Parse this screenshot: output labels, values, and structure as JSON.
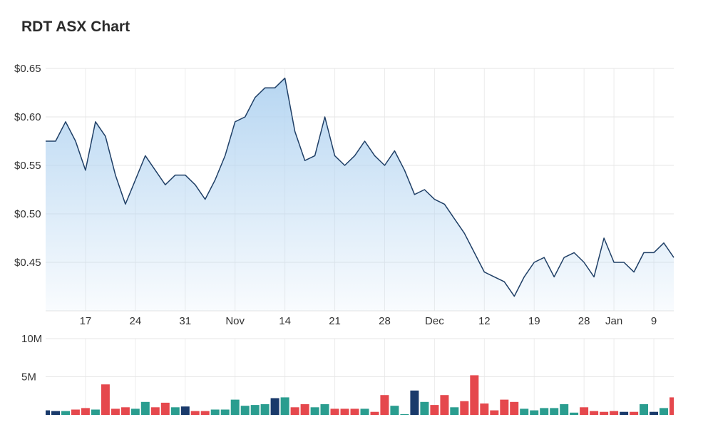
{
  "title": "RDT ASX Chart",
  "chart_data": [
    {
      "type": "area",
      "name": "price",
      "y_tick_labels": [
        "$0.65",
        "$0.60",
        "$0.55",
        "$0.50",
        "$0.45"
      ],
      "y_ticks": [
        0.65,
        0.6,
        0.55,
        0.5,
        0.45
      ],
      "ylim": [
        0.4,
        0.65
      ],
      "x_tick_labels": [
        "17",
        "24",
        "31",
        "Nov",
        "14",
        "21",
        "28",
        "Dec",
        "12",
        "19",
        "28",
        "Jan",
        "9"
      ],
      "x_tick_index": [
        4,
        9,
        14,
        19,
        24,
        29,
        34,
        39,
        44,
        49,
        54,
        57,
        61
      ],
      "grid": true,
      "line_color": "#1f3f66",
      "fill_color": "#b9d8f2",
      "values": [
        0.575,
        0.575,
        0.595,
        0.575,
        0.545,
        0.595,
        0.58,
        0.54,
        0.51,
        0.535,
        0.56,
        0.545,
        0.53,
        0.54,
        0.54,
        0.53,
        0.515,
        0.535,
        0.56,
        0.595,
        0.6,
        0.62,
        0.63,
        0.63,
        0.64,
        0.585,
        0.555,
        0.56,
        0.6,
        0.56,
        0.55,
        0.56,
        0.575,
        0.56,
        0.55,
        0.565,
        0.545,
        0.52,
        0.525,
        0.515,
        0.51,
        0.495,
        0.48,
        0.46,
        0.44,
        0.435,
        0.43,
        0.415,
        0.435,
        0.45,
        0.455,
        0.435,
        0.455,
        0.46,
        0.45,
        0.435,
        0.475,
        0.45,
        0.45,
        0.44,
        0.46,
        0.46,
        0.47,
        0.455
      ]
    },
    {
      "type": "bar",
      "name": "volume",
      "y_tick_labels": [
        "10M",
        "5M"
      ],
      "y_ticks": [
        10000000,
        5000000
      ],
      "ylim": [
        0,
        10000000
      ],
      "colors": {
        "up": "#2a9d8f",
        "down": "#e5484d",
        "neutral": "#1a3a6b"
      },
      "values": [
        600000,
        500000,
        500000,
        700000,
        900000,
        700000,
        4000000,
        800000,
        1000000,
        800000,
        1700000,
        1000000,
        1600000,
        1000000,
        1100000,
        500000,
        500000,
        700000,
        700000,
        2000000,
        1200000,
        1300000,
        1400000,
        2200000,
        2300000,
        1000000,
        1400000,
        1000000,
        1400000,
        800000,
        800000,
        800000,
        800000,
        400000,
        2600000,
        1200000,
        100000,
        3200000,
        1700000,
        1300000,
        2600000,
        1000000,
        1800000,
        5200000,
        1500000,
        600000,
        2000000,
        1700000,
        800000,
        600000,
        900000,
        900000,
        1400000,
        300000,
        1000000,
        500000,
        400000,
        500000,
        400000,
        400000,
        1400000,
        400000,
        900000,
        2300000
      ],
      "bar_colors": [
        "neutral",
        "neutral",
        "up",
        "down",
        "down",
        "up",
        "down",
        "down",
        "down",
        "up",
        "up",
        "down",
        "down",
        "up",
        "neutral",
        "down",
        "down",
        "up",
        "up",
        "up",
        "up",
        "up",
        "up",
        "neutral",
        "up",
        "down",
        "down",
        "up",
        "up",
        "down",
        "down",
        "down",
        "up",
        "down",
        "down",
        "up",
        "up",
        "neutral",
        "up",
        "down",
        "down",
        "up",
        "down",
        "down",
        "down",
        "down",
        "down",
        "down",
        "up",
        "up",
        "up",
        "up",
        "up",
        "up",
        "down",
        "down",
        "down",
        "down",
        "neutral",
        "down",
        "up",
        "neutral",
        "up",
        "down"
      ]
    }
  ]
}
